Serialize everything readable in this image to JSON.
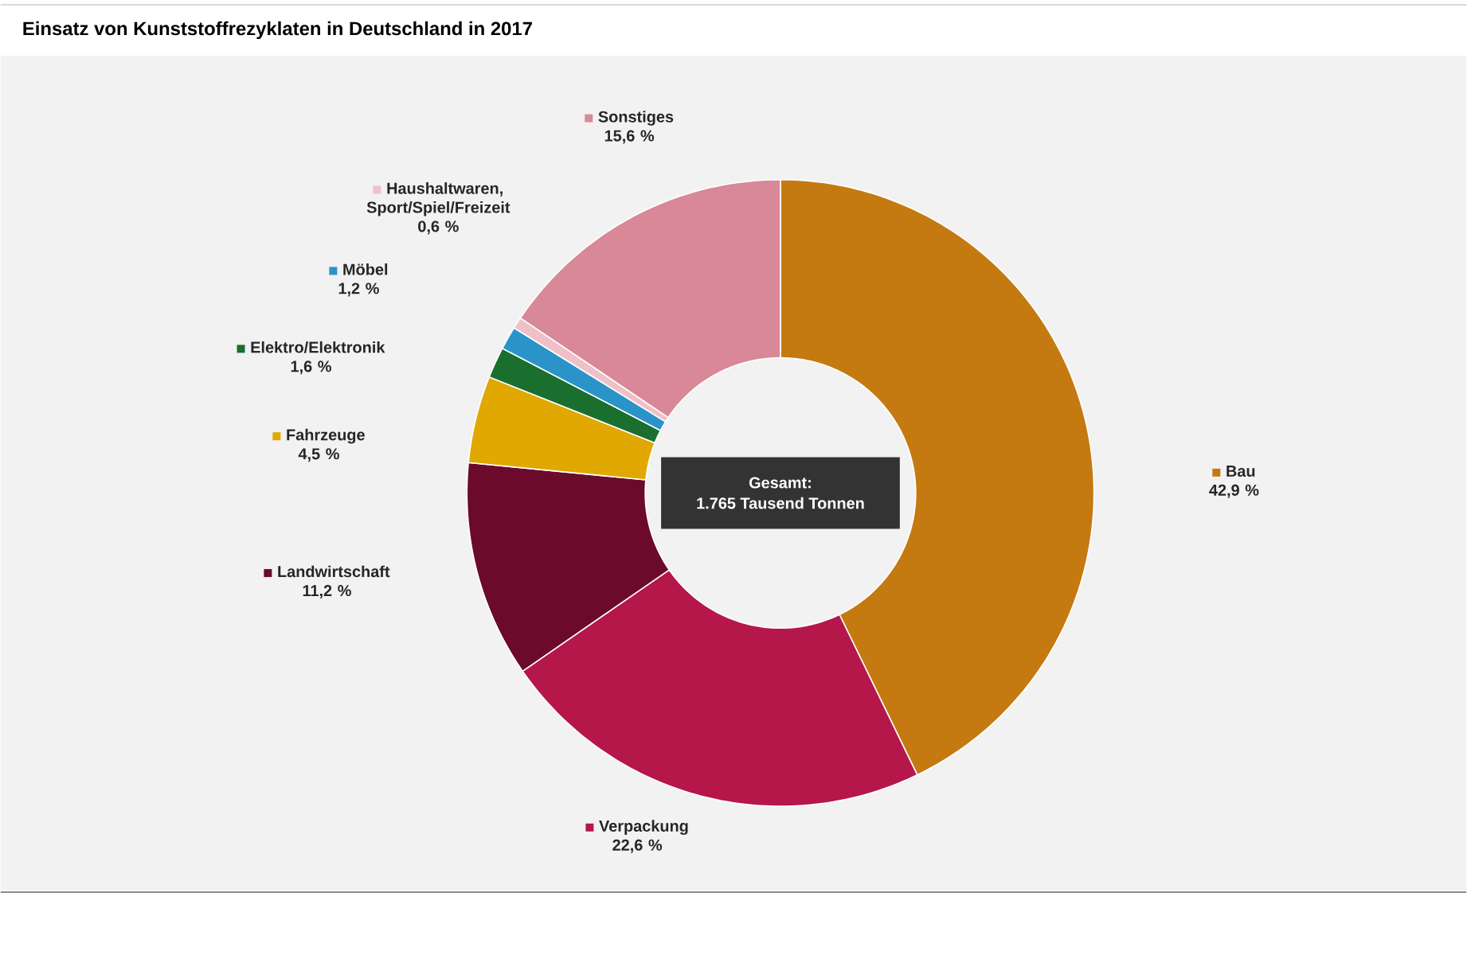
{
  "chart_data": {
    "type": "donut",
    "title": "Einsatz von Kunststoffrezyklaten in Deutschland in 2017",
    "categories": [
      "Bau",
      "Verpackung",
      "Landwirtschaft",
      "Fahrzeuge",
      "Elektro/Elektronik",
      "Möbel",
      "Haushaltwaren, Sport/Spiel/Freizeit",
      "Sonstiges"
    ],
    "values": [
      42.9,
      22.6,
      11.2,
      4.5,
      1.6,
      1.2,
      0.6,
      15.6
    ],
    "value_labels": [
      "42,9 %",
      "22,6 %",
      "11,2 %",
      "4,5 %",
      "1,6 %",
      "1,2 %",
      "0,6 %",
      "15,6 %"
    ],
    "colors": [
      "#c47a10",
      "#b5174b",
      "#6b0a2b",
      "#e0a800",
      "#1a6e2e",
      "#2a94c8",
      "#f0c0c8",
      "#d98898"
    ],
    "legend": "left",
    "annotations": [
      "Gesamt:",
      "1.765 Tausend Tonnen"
    ]
  }
}
